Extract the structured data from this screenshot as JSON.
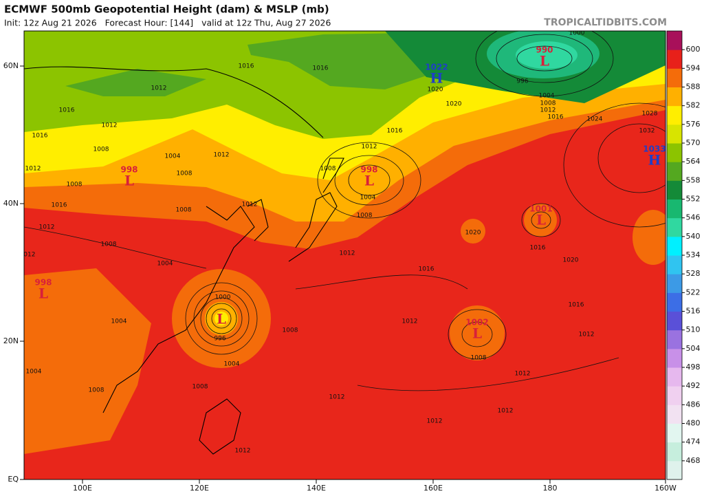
{
  "header": {
    "title": "ECMWF 500mb Geopotential Height (dam) & MSLP (mb)",
    "subtitle": "Init: 12z Aug 21 2026   Forecast Hour: [144]   valid at 12z Thu, Aug 27 2026",
    "site": "TROPICALTIDBITS.COM"
  },
  "map": {
    "lat_labels": [
      "60N",
      "40N",
      "20N",
      "EQ"
    ],
    "lon_labels": [
      "100E",
      "120E",
      "140E",
      "160E",
      "180",
      "160W"
    ],
    "centers": [
      {
        "kind": "L",
        "pressure": "998",
        "color": "#d8203a"
      },
      {
        "kind": "L",
        "pressure": "998",
        "color": "#d8203a"
      },
      {
        "kind": "H",
        "pressure": "1022",
        "color": "#1f3fc8"
      },
      {
        "kind": "L",
        "pressure": "990",
        "color": "#d8203a"
      },
      {
        "kind": "H",
        "pressure": "1033",
        "color": "#1f3fc8"
      },
      {
        "kind": "L",
        "pressure": "1001",
        "color": "#d8203a"
      },
      {
        "kind": "L",
        "pressure": "1002",
        "color": "#d8203a"
      },
      {
        "kind": "L",
        "pressure": "998",
        "color": "#d8203a"
      },
      {
        "kind": "L",
        "color": "#d8203a"
      }
    ],
    "isobar_labels": [
      "1016",
      "1016",
      "1012",
      "1016",
      "1012",
      "1016",
      "1008",
      "1004",
      "1012",
      "1012",
      "1008",
      "1008",
      "1008",
      "1016",
      "1012",
      "1008",
      "1012",
      "1016",
      "1004",
      "1008",
      "1020",
      "1020",
      "1000",
      "996",
      "1004",
      "1008",
      "1012",
      "1016",
      "1024",
      "1028",
      "1032",
      "1020",
      "1016",
      "1020",
      "1016",
      "1012",
      "1016",
      "1012",
      "1012",
      "1008",
      "1004",
      "1000",
      "996",
      "1008",
      "1012",
      "1012",
      "1012",
      "1012",
      "1012",
      "1008",
      "1004",
      "1004",
      "1008",
      "1004",
      "1012",
      "1012",
      "1008"
    ]
  },
  "colorbar": {
    "levels": [
      468,
      474,
      480,
      486,
      492,
      498,
      504,
      510,
      516,
      522,
      528,
      534,
      540,
      546,
      552,
      558,
      564,
      570,
      576,
      582,
      588,
      594,
      600
    ],
    "colors": [
      "#dff2ec",
      "#c6eedd",
      "#e2f6f0",
      "#f2e2f2",
      "#f0d0f0",
      "#e6b8ee",
      "#c890e8",
      "#9a72e0",
      "#5a50d8",
      "#3c6ee6",
      "#3c9ae6",
      "#30c4f0",
      "#00f0ff",
      "#30d8a0",
      "#18b870",
      "#148a38",
      "#54a820",
      "#8cc400",
      "#d8e400",
      "#ffee00",
      "#ffb000",
      "#f46c0a",
      "#e8201a",
      "#a8105a"
    ]
  }
}
